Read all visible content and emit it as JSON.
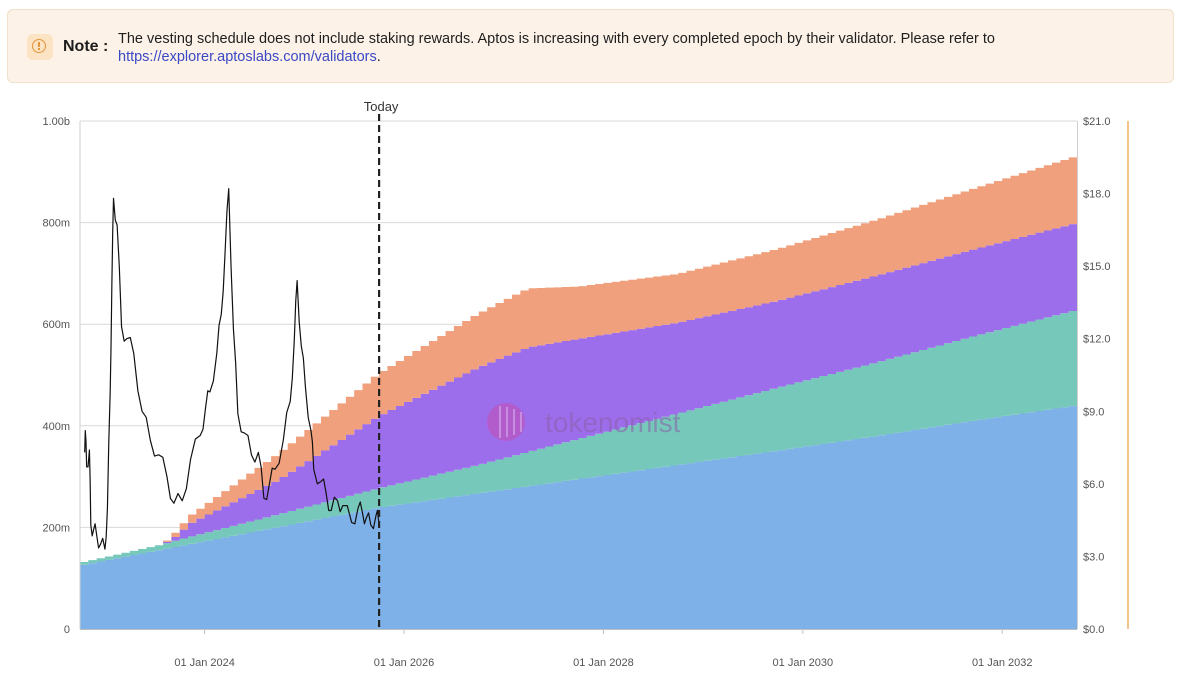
{
  "note": {
    "label": "Note",
    "separator": ":",
    "icon": "info-circle-icon",
    "text": "The vesting schedule does not include staking rewards. Aptos is increasing with every completed epoch by their validator. Please refer to",
    "link": "https://explorer.aptoslabs.com/validators",
    "trailing": "."
  },
  "chart_data": {
    "type": "area",
    "stacked": true,
    "step": "monthly",
    "x_range": [
      "2022-10-01",
      "2032-10-01"
    ],
    "ylim": [
      0,
      1000000000
    ],
    "y2lim": [
      0,
      21
    ],
    "y_ticks": [
      {
        "value": 0,
        "label": "0"
      },
      {
        "value": 200000000,
        "label": "200m"
      },
      {
        "value": 400000000,
        "label": "400m"
      },
      {
        "value": 600000000,
        "label": "600m"
      },
      {
        "value": 800000000,
        "label": "800m"
      },
      {
        "value": 1000000000,
        "label": "1.00b"
      }
    ],
    "y2_ticks": [
      {
        "value": 0,
        "label": "$0.0"
      },
      {
        "value": 3,
        "label": "$3.0"
      },
      {
        "value": 6,
        "label": "$6.0"
      },
      {
        "value": 9,
        "label": "$9.0"
      },
      {
        "value": 12,
        "label": "$12.0"
      },
      {
        "value": 15,
        "label": "$15.0"
      },
      {
        "value": 18,
        "label": "$18.0"
      },
      {
        "value": 21,
        "label": "$21.0"
      }
    ],
    "x_ticks": [
      {
        "date": "2024-01-01",
        "label": "01 Jan 2024"
      },
      {
        "date": "2026-01-01",
        "label": "01 Jan 2026"
      },
      {
        "date": "2028-01-01",
        "label": "01 Jan 2028"
      },
      {
        "date": "2030-01-01",
        "label": "01 Jan 2030"
      },
      {
        "date": "2032-01-01",
        "label": "01 Jan 2032"
      }
    ],
    "today": {
      "date": "2025-10-01",
      "label": "Today"
    },
    "watermark": "tokenomist",
    "series": [
      {
        "color": "#7fb1e9",
        "x": [
          "2022-10-01",
          "2023-10-01",
          "2024-10-01",
          "2025-10-01",
          "2026-10-01",
          "2027-10-01",
          "2028-10-01",
          "2029-10-01",
          "2030-10-01",
          "2031-10-01",
          "2032-10-01"
        ],
        "values": [
          125000000,
          163000000,
          201000000,
          239000000,
          267000000,
          295000000,
          323000000,
          351000000,
          380000000,
          411000000,
          440000000
        ]
      },
      {
        "color": "#76c8bb",
        "x": [
          "2022-10-01",
          "2023-08-01",
          "2023-10-01",
          "2024-10-01",
          "2025-10-01",
          "2026-10-01",
          "2027-10-01",
          "2028-10-01",
          "2029-10-01",
          "2030-10-01",
          "2031-10-01",
          "2032-10-01"
        ],
        "values": [
          5000000,
          10000000,
          13000000,
          25000000,
          38000000,
          56000000,
          79000000,
          101000000,
          124000000,
          145000000,
          167000000,
          188000000
        ]
      },
      {
        "color": "#9d6eec",
        "x": [
          "2022-10-01",
          "2023-08-01",
          "2023-10-01",
          "2023-11-01",
          "2024-10-01",
          "2025-10-01",
          "2026-10-01",
          "2027-04-01",
          "2027-10-01",
          "2028-10-01",
          "2029-10-01",
          "2030-10-01",
          "2031-10-01",
          "2032-10-01"
        ],
        "values": [
          0,
          0,
          10000000,
          25000000,
          68000000,
          142000000,
          192000000,
          206000000,
          197000000,
          179000000,
          171000000,
          171000000,
          171000000,
          171000000
        ]
      },
      {
        "color": "#f0a07d",
        "x": [
          "2022-10-01",
          "2023-08-01",
          "2023-10-01",
          "2024-10-01",
          "2025-10-01",
          "2026-10-01",
          "2027-04-01",
          "2027-10-01",
          "2028-10-01",
          "2029-10-01",
          "2030-10-01",
          "2031-10-01",
          "2032-10-01"
        ],
        "values": [
          0,
          0,
          11000000,
          52000000,
          84000000,
          106000000,
          116000000,
          103000000,
          96000000,
          102000000,
          110000000,
          120000000,
          132000000
        ]
      }
    ],
    "price": {
      "color": "#111111",
      "x": [
        "2022-10-18",
        "2022-10-20",
        "2022-10-25",
        "2022-11-05",
        "2022-11-10",
        "2022-11-20",
        "2022-12-01",
        "2022-12-15",
        "2022-12-31",
        "2023-01-10",
        "2023-01-20",
        "2023-01-26",
        "2023-02-02",
        "2023-02-15",
        "2023-03-01",
        "2023-03-20",
        "2023-04-15",
        "2023-05-15",
        "2023-06-15",
        "2023-07-15",
        "2023-08-15",
        "2023-09-10",
        "2023-10-10",
        "2023-11-10",
        "2023-12-15",
        "2024-01-05",
        "2024-01-20",
        "2024-02-15",
        "2024-03-01",
        "2024-03-15",
        "2024-03-28",
        "2024-04-15",
        "2024-05-01",
        "2024-05-25",
        "2024-06-20",
        "2024-07-15",
        "2024-08-05",
        "2024-08-25",
        "2024-09-15",
        "2024-10-15",
        "2024-11-10",
        "2024-11-25",
        "2024-12-05",
        "2024-12-20",
        "2025-01-05",
        "2025-01-25",
        "2025-02-05",
        "2025-03-01",
        "2025-03-20",
        "2025-04-08",
        "2025-05-01",
        "2025-05-20",
        "2025-06-22",
        "2025-07-15",
        "2025-08-01",
        "2025-08-15",
        "2025-09-01",
        "2025-09-20",
        "2025-09-30"
      ],
      "values": [
        7.3,
        8.2,
        6.7,
        7.4,
        4.3,
        4.1,
        3.9,
        3.5,
        3.3,
        5.0,
        9.8,
        14.2,
        17.8,
        16.7,
        12.5,
        12.0,
        11.4,
        9.0,
        7.8,
        7.2,
        6.3,
        5.2,
        5.3,
        7.0,
        8.0,
        9.2,
        9.8,
        11.4,
        13.0,
        15.6,
        18.2,
        12.4,
        8.9,
        8.1,
        7.2,
        7.3,
        5.4,
        6.0,
        6.6,
        7.8,
        9.4,
        12.0,
        14.4,
        11.7,
        10.0,
        8.2,
        6.6,
        6.1,
        5.6,
        4.9,
        5.3,
        5.1,
        4.4,
        5.0,
        4.8,
        4.6,
        4.3,
        4.7,
        4.4
      ]
    }
  }
}
